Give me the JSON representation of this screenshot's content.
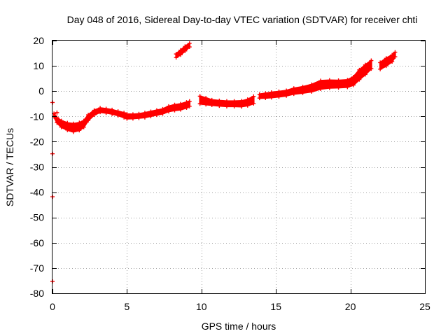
{
  "chart_data": {
    "type": "scatter",
    "title": "Day 048 of 2016, Sidereal Day-to-day VTEC variation (SDTVAR) for receiver chti",
    "xlabel": "GPS time / hours",
    "ylabel": "SDTVAR / TECUs",
    "xlim": [
      0,
      25
    ],
    "ylim": [
      -80,
      20
    ],
    "xticks": [
      0,
      5,
      10,
      15,
      20,
      25
    ],
    "yticks": [
      20,
      10,
      0,
      -10,
      -20,
      -30,
      -40,
      -50,
      -60,
      -70,
      -80
    ],
    "grid": true,
    "marker_color": "#ff0000",
    "band_segments": [
      {
        "x": [
          0.1,
          0.3,
          0.6,
          1.0,
          1.4,
          1.8,
          2.1,
          2.4,
          2.8,
          3.2,
          3.6,
          4.0,
          4.4,
          4.8,
          5.0,
          5.4,
          5.8,
          6.2,
          6.6,
          7.0,
          7.4,
          7.8,
          8.2,
          8.6,
          9.0,
          9.2
        ],
        "y": [
          -9.5,
          -11.5,
          -13.0,
          -14.0,
          -14.5,
          -14.0,
          -13.0,
          -10.5,
          -8.5,
          -7.5,
          -7.8,
          -8.2,
          -8.8,
          -9.5,
          -10.0,
          -10.0,
          -9.8,
          -9.5,
          -9.0,
          -8.5,
          -8.0,
          -7.0,
          -6.5,
          -6.2,
          -5.5,
          -5.0
        ],
        "w": [
          1.2,
          2.0,
          2.5,
          2.8,
          3.2,
          3.0,
          2.5,
          2.2,
          1.8,
          1.6,
          1.6,
          1.6,
          1.6,
          1.8,
          1.8,
          1.6,
          1.6,
          1.8,
          1.8,
          1.8,
          1.8,
          2.0,
          2.2,
          2.2,
          2.2,
          2.0
        ]
      },
      {
        "x": [
          9.9,
          10.3,
          10.7,
          11.2,
          11.7,
          12.2,
          12.7,
          13.1,
          13.5
        ],
        "y": [
          -3.5,
          -4.0,
          -4.5,
          -4.8,
          -5.0,
          -5.0,
          -5.0,
          -4.5,
          -3.5
        ],
        "w": [
          3.0,
          2.5,
          2.0,
          2.0,
          2.0,
          2.0,
          2.2,
          2.4,
          2.8
        ]
      },
      {
        "x": [
          13.9,
          14.3,
          14.7,
          15.2,
          15.7,
          16.2,
          16.8,
          17.4,
          18.0,
          18.6,
          19.2,
          19.8,
          20.2,
          20.6,
          21.0,
          21.4
        ],
        "y": [
          -2.0,
          -1.8,
          -1.5,
          -1.2,
          -0.8,
          0.0,
          0.5,
          1.2,
          2.5,
          2.8,
          2.8,
          3.0,
          4.0,
          6.5,
          8.5,
          10.5
        ],
        "w": [
          1.5,
          1.8,
          2.0,
          2.0,
          2.0,
          2.2,
          2.4,
          2.8,
          3.2,
          3.0,
          2.8,
          2.8,
          3.2,
          3.8,
          3.8,
          3.2
        ]
      },
      {
        "x": [
          8.3,
          8.6,
          8.9,
          9.2
        ],
        "y": [
          14.0,
          15.3,
          16.8,
          18.2
        ],
        "w": [
          1.4,
          1.8,
          1.8,
          1.4
        ]
      },
      {
        "x": [
          22.0,
          22.4,
          22.8,
          23.0
        ],
        "y": [
          10.0,
          11.5,
          13.0,
          14.5
        ],
        "w": [
          2.6,
          3.0,
          2.6,
          1.8
        ]
      }
    ],
    "outlier_points": [
      {
        "x": 0.0,
        "y": -4.5
      },
      {
        "x": 0.0,
        "y": -24.8
      },
      {
        "x": 0.0,
        "y": -41.8
      },
      {
        "x": 0.0,
        "y": -75.3
      },
      {
        "x": 0.3,
        "y": -8.5
      }
    ]
  }
}
